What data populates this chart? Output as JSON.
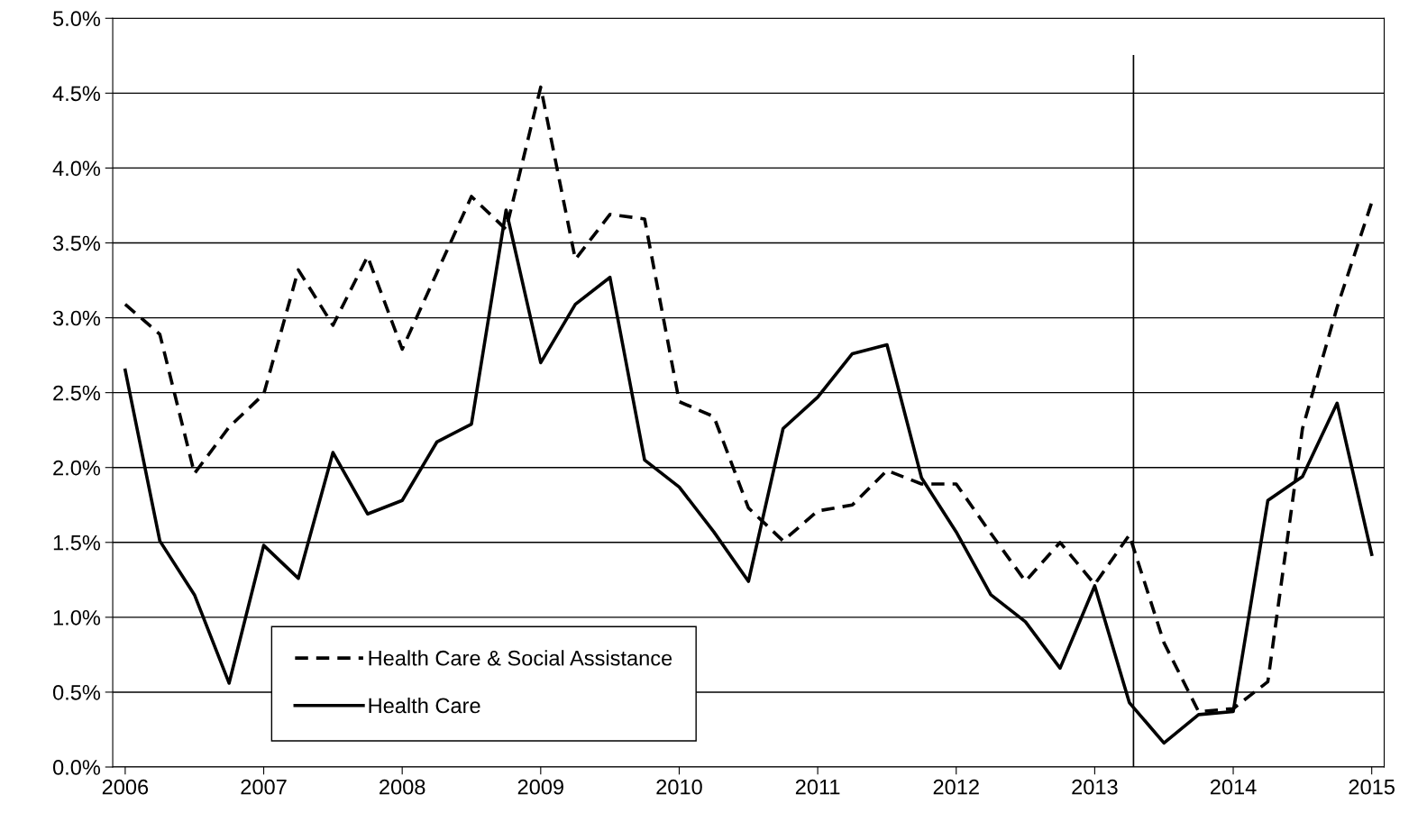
{
  "chart_data": {
    "type": "line",
    "x": [
      2006,
      2006.25,
      2006.5,
      2006.75,
      2007,
      2007.25,
      2007.5,
      2007.75,
      2008,
      2008.25,
      2008.5,
      2008.75,
      2009,
      2009.25,
      2009.5,
      2009.75,
      2010,
      2010.25,
      2010.5,
      2010.75,
      2011,
      2011.25,
      2011.5,
      2011.75,
      2012,
      2012.25,
      2012.5,
      2012.75,
      2013,
      2013.25,
      2013.5,
      2013.75,
      2014,
      2014.25,
      2014.5,
      2014.75,
      2015
    ],
    "series": [
      {
        "name": "Health Care & Social Assistance",
        "color": "#000000",
        "line_style": "dashed",
        "values": [
          3.09,
          2.89,
          1.96,
          2.27,
          2.49,
          3.32,
          2.95,
          3.41,
          2.79,
          3.3,
          3.81,
          3.59,
          4.54,
          3.39,
          3.69,
          3.66,
          2.44,
          2.34,
          1.73,
          1.51,
          1.71,
          1.75,
          1.98,
          1.89,
          1.89,
          1.56,
          1.24,
          1.5,
          1.22,
          1.55,
          0.83,
          0.37,
          0.39,
          0.57,
          2.26,
          3.07,
          3.77
        ]
      },
      {
        "name": "Health Care",
        "color": "#000000",
        "line_style": "solid",
        "values": [
          2.65,
          1.51,
          1.15,
          0.56,
          1.48,
          1.26,
          2.1,
          1.69,
          1.78,
          2.17,
          2.29,
          3.72,
          2.7,
          3.09,
          3.27,
          2.05,
          1.87,
          1.57,
          1.24,
          2.26,
          2.47,
          2.76,
          2.82,
          1.93,
          1.57,
          1.15,
          0.97,
          0.66,
          1.21,
          0.43,
          0.16,
          0.35,
          0.37,
          1.78,
          1.94,
          2.43,
          1.42
        ]
      }
    ],
    "xlim": [
      2005.91,
      2015.09
    ],
    "xticks": [
      2006,
      2007,
      2008,
      2009,
      2010,
      2011,
      2012,
      2013,
      2014,
      2015
    ],
    "ylim": [
      0,
      5
    ],
    "yticks": [
      {
        "value": 0,
        "label": "0.0%"
      },
      {
        "value": 0.5,
        "label": "0.5%"
      },
      {
        "value": 1,
        "label": "1.0%"
      },
      {
        "value": 1.5,
        "label": "1.5%"
      },
      {
        "value": 2,
        "label": "2.0%"
      },
      {
        "value": 2.5,
        "label": "2.5%"
      },
      {
        "value": 3,
        "label": "3.0%"
      },
      {
        "value": 3.5,
        "label": "3.5%"
      },
      {
        "value": 4,
        "label": "4.0%"
      },
      {
        "value": 4.5,
        "label": "4.5%"
      },
      {
        "value": 5,
        "label": "5.0%"
      }
    ],
    "ref_lines": [
      {
        "axis": "x",
        "value": 2013.28,
        "color": "#000000"
      }
    ],
    "grid": "y",
    "legend": "bottom left",
    "marker": "none"
  }
}
